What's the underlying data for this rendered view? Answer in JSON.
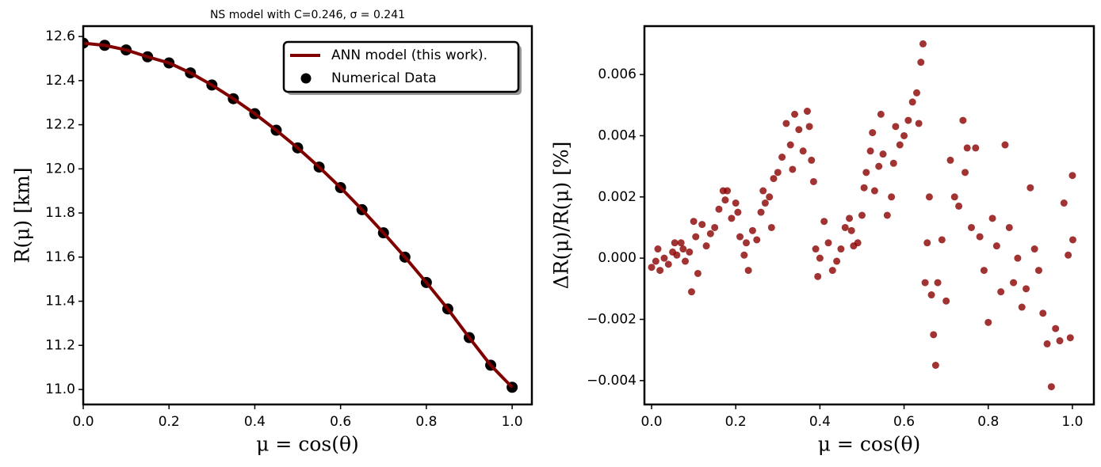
{
  "chart_data": [
    {
      "type": "line",
      "title": "NS model with C=0.246, σ = 0.241",
      "xlabel": "μ = cos(θ)",
      "ylabel": "R(μ) [km]",
      "legend": "upper right",
      "x": [
        0,
        0.05,
        0.1,
        0.15,
        0.2,
        0.25,
        0.3,
        0.35,
        0.4,
        0.45,
        0.5,
        0.55,
        0.6,
        0.65,
        0.7,
        0.75,
        0.8,
        0.85,
        0.9,
        0.95,
        1.0
      ],
      "series": [
        {
          "name": "ANN model (this work).",
          "type": "line",
          "color": "#800000",
          "values": [
            12.57,
            12.56,
            12.539,
            12.508,
            12.48,
            12.435,
            12.38,
            12.318,
            12.25,
            12.175,
            12.095,
            12.008,
            11.915,
            11.815,
            11.71,
            11.6,
            11.485,
            11.365,
            11.235,
            11.11,
            11.01
          ]
        },
        {
          "name": "Numerical Data",
          "type": "scatter",
          "color": "#000000",
          "values": [
            12.57,
            12.56,
            12.539,
            12.508,
            12.48,
            12.435,
            12.38,
            12.318,
            12.25,
            12.175,
            12.095,
            12.008,
            11.915,
            11.815,
            11.71,
            11.6,
            11.485,
            11.365,
            11.235,
            11.11,
            11.01
          ]
        }
      ],
      "xlim": [
        0,
        1.046
      ],
      "ylim": [
        10.932,
        12.647
      ],
      "xticks": [
        {
          "value": 0,
          "label": "0.0"
        },
        0.2,
        0.4,
        0.6,
        0.8,
        {
          "value": 1,
          "label": "1.0"
        }
      ],
      "yticks": [
        {
          "value": 11,
          "label": "11.0"
        },
        11.2,
        11.4,
        11.6,
        11.8,
        {
          "value": 12,
          "label": "12.0"
        },
        12.2,
        12.4,
        12.6
      ]
    },
    {
      "type": "scatter",
      "xlabel": "μ = cos(θ)",
      "ylabel": "ΔR(μ)/R(μ) [%]",
      "color": "#8b0000",
      "x": [
        0.0,
        0.01,
        0.015,
        0.02,
        0.03,
        0.04,
        0.05,
        0.055,
        0.06,
        0.07,
        0.075,
        0.08,
        0.09,
        0.095,
        0.1,
        0.105,
        0.11,
        0.12,
        0.13,
        0.14,
        0.15,
        0.16,
        0.17,
        0.175,
        0.18,
        0.19,
        0.2,
        0.205,
        0.21,
        0.22,
        0.225,
        0.23,
        0.24,
        0.25,
        0.26,
        0.265,
        0.27,
        0.28,
        0.285,
        0.29,
        0.3,
        0.31,
        0.32,
        0.33,
        0.335,
        0.34,
        0.35,
        0.36,
        0.37,
        0.375,
        0.38,
        0.385,
        0.39,
        0.395,
        0.4,
        0.41,
        0.42,
        0.43,
        0.44,
        0.45,
        0.46,
        0.47,
        0.475,
        0.48,
        0.49,
        0.5,
        0.505,
        0.51,
        0.52,
        0.525,
        0.53,
        0.54,
        0.545,
        0.55,
        0.56,
        0.57,
        0.575,
        0.58,
        0.59,
        0.6,
        0.61,
        0.62,
        0.63,
        0.635,
        0.64,
        0.645,
        0.65,
        0.655,
        0.66,
        0.665,
        0.67,
        0.675,
        0.68,
        0.69,
        0.7,
        0.71,
        0.72,
        0.73,
        0.74,
        0.745,
        0.75,
        0.76,
        0.77,
        0.78,
        0.79,
        0.8,
        0.81,
        0.82,
        0.83,
        0.84,
        0.85,
        0.86,
        0.87,
        0.88,
        0.89,
        0.9,
        0.91,
        0.92,
        0.93,
        0.94,
        0.95,
        0.96,
        0.97,
        0.98,
        0.99,
        0.995,
        1.0,
        1.001
      ],
      "values": [
        -0.0003,
        -0.0001,
        0.0003,
        -0.0004,
        0.0,
        -0.0002,
        0.0002,
        0.0005,
        0.0001,
        0.0005,
        0.0003,
        -0.0001,
        0.0002,
        -0.0011,
        0.0012,
        0.0007,
        -0.0005,
        0.0011,
        0.0004,
        0.0008,
        0.001,
        0.0016,
        0.0022,
        0.0019,
        0.0022,
        0.0013,
        0.0018,
        0.0015,
        0.0007,
        0.0001,
        0.0005,
        -0.0004,
        0.0009,
        0.0006,
        0.0015,
        0.0022,
        0.0018,
        0.002,
        0.001,
        0.0026,
        0.0028,
        0.0033,
        0.0044,
        0.0037,
        0.0029,
        0.0047,
        0.0042,
        0.0035,
        0.0048,
        0.0043,
        0.0032,
        0.0025,
        0.0003,
        -0.0006,
        0.0,
        0.0012,
        0.0005,
        -0.0004,
        -0.0001,
        0.0003,
        0.001,
        0.0013,
        0.0009,
        0.0004,
        0.0005,
        0.0014,
        0.0023,
        0.0028,
        0.0035,
        0.0041,
        0.0022,
        0.003,
        0.0047,
        0.0034,
        0.0014,
        0.002,
        0.0031,
        0.0043,
        0.0037,
        0.004,
        0.0045,
        0.0051,
        0.0054,
        0.0044,
        0.0064,
        0.007,
        -0.0008,
        0.0005,
        0.002,
        -0.0012,
        -0.0025,
        -0.0035,
        -0.0008,
        0.0006,
        -0.0014,
        0.0032,
        0.002,
        0.0017,
        0.0045,
        0.0028,
        0.0036,
        0.001,
        0.0036,
        0.0007,
        -0.0004,
        -0.0021,
        0.0013,
        0.0004,
        -0.0011,
        0.0037,
        0.001,
        -0.0008,
        0.0,
        -0.0016,
        -0.001,
        0.0023,
        0.0003,
        -0.0004,
        -0.0018,
        -0.0028,
        -0.0042,
        -0.0023,
        -0.0027,
        0.0018,
        0.0001,
        -0.0026,
        0.0027,
        0.0006
      ],
      "xlim": [
        -0.017,
        1.051
      ],
      "ylim": [
        -0.00478,
        0.00758
      ],
      "xticks": [
        {
          "value": 0,
          "label": "0.0"
        },
        0.2,
        0.4,
        0.6,
        0.8,
        {
          "value": 1,
          "label": "1.0"
        }
      ],
      "yticks": [
        {
          "value": -0.004,
          "label": "−0.004"
        },
        {
          "value": -0.002,
          "label": "−0.002"
        },
        {
          "value": 0,
          "label": "0.000"
        },
        {
          "value": 0.002,
          "label": "0.002"
        },
        {
          "value": 0.004,
          "label": "0.004"
        },
        {
          "value": 0.006,
          "label": "0.006"
        }
      ]
    }
  ]
}
